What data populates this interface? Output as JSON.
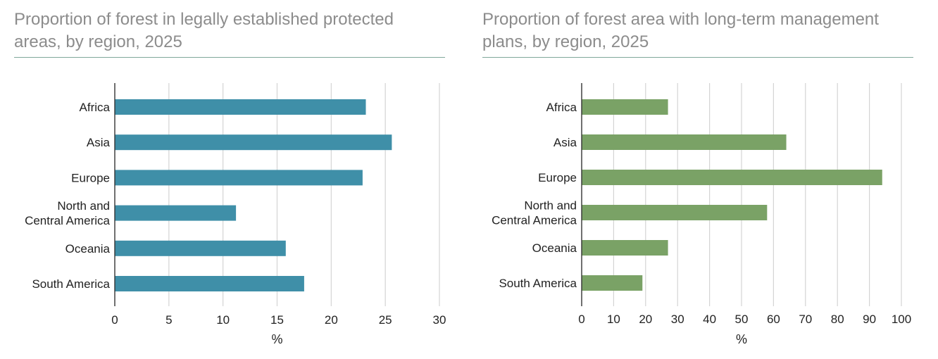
{
  "chart_data": [
    {
      "type": "bar",
      "orientation": "horizontal",
      "title": "Proportion of forest in legally established protected areas, by region, 2025",
      "categories": [
        "Africa",
        "Asia",
        "Europe",
        "North and Central America",
        "Oceania",
        "South America"
      ],
      "category_lines": [
        [
          "Africa"
        ],
        [
          "Asia"
        ],
        [
          "Europe"
        ],
        [
          "North and",
          "Central America"
        ],
        [
          "Oceania"
        ],
        [
          "South America"
        ]
      ],
      "values": [
        23.2,
        25.6,
        22.9,
        11.2,
        15.8,
        17.5
      ],
      "xlabel": "%",
      "xlim": [
        0,
        30
      ],
      "xticks": [
        0,
        5,
        10,
        15,
        20,
        25,
        30
      ],
      "grid": true,
      "color": "#3f8fa8"
    },
    {
      "type": "bar",
      "orientation": "horizontal",
      "title": "Proportion of forest area with long-term management plans, by region, 2025",
      "categories": [
        "Africa",
        "Asia",
        "Europe",
        "North and Central America",
        "Oceania",
        "South America"
      ],
      "category_lines": [
        [
          "Africa"
        ],
        [
          "Asia"
        ],
        [
          "Europe"
        ],
        [
          "North and",
          "Central America"
        ],
        [
          "Oceania"
        ],
        [
          "South America"
        ]
      ],
      "values": [
        27,
        64,
        94,
        58,
        27,
        19
      ],
      "xlabel": "%",
      "xlim": [
        0,
        100
      ],
      "xticks": [
        0,
        10,
        20,
        30,
        40,
        50,
        60,
        70,
        80,
        90,
        100
      ],
      "grid": true,
      "color": "#7aa266"
    }
  ]
}
